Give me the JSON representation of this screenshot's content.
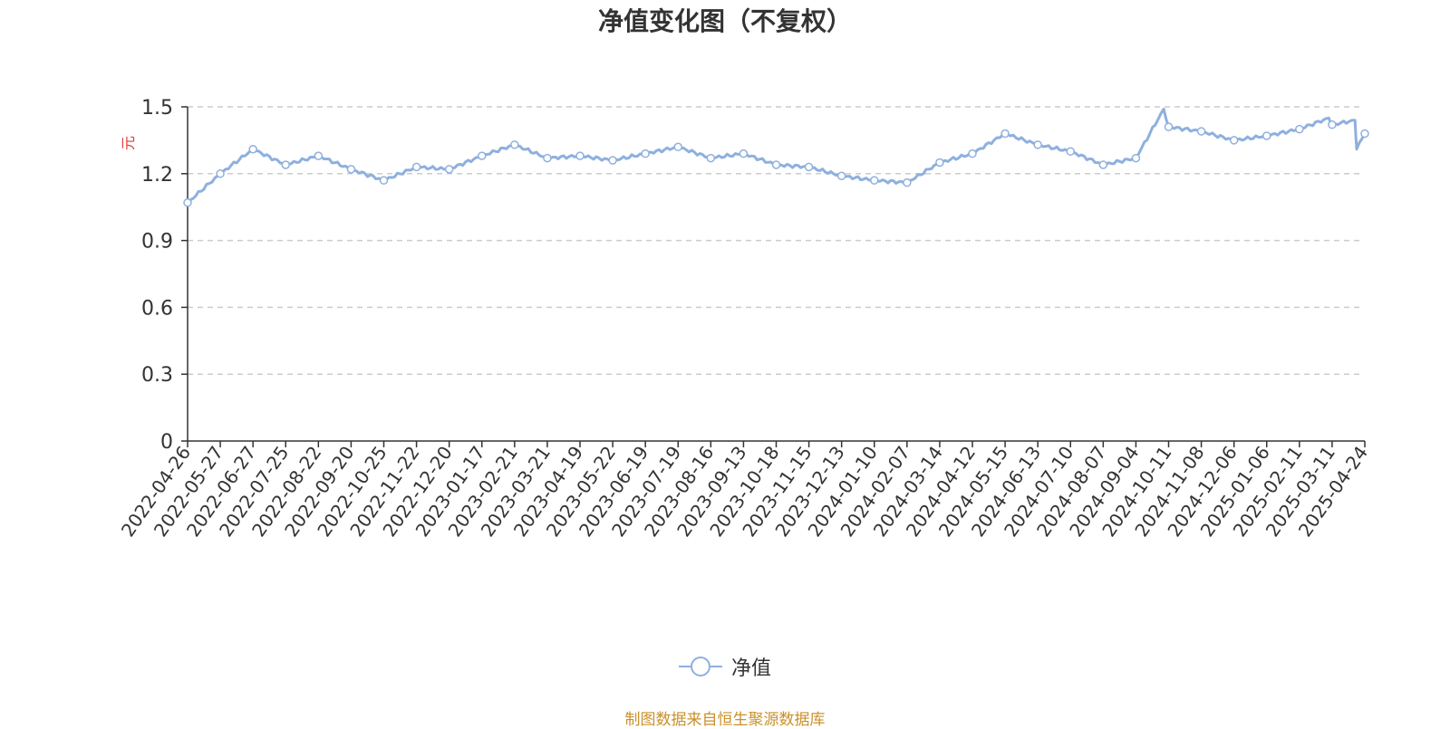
{
  "chart_data": {
    "type": "line",
    "title": "净值变化图（不复权）",
    "ylabel": "元",
    "xlabel": "",
    "ylim": [
      0,
      1.5
    ],
    "yticks": [
      "0",
      "0.3",
      "0.6",
      "0.9",
      "1.2",
      "1.5"
    ],
    "grid": "horizontal dashed",
    "legend_position": "bottom-center",
    "x": [
      "2022-04-26",
      "2022-05-27",
      "2022-06-27",
      "2022-07-25",
      "2022-08-22",
      "2022-09-20",
      "2022-10-25",
      "2022-11-22",
      "2022-12-20",
      "2023-01-17",
      "2023-02-21",
      "2023-03-21",
      "2023-04-19",
      "2023-05-22",
      "2023-06-19",
      "2023-07-19",
      "2023-08-16",
      "2023-09-13",
      "2023-10-18",
      "2023-11-15",
      "2023-12-13",
      "2024-01-10",
      "2024-02-07",
      "2024-03-14",
      "2024-04-12",
      "2024-05-15",
      "2024-06-13",
      "2024-07-10",
      "2024-08-07",
      "2024-09-04",
      "2024-10-11",
      "2024-11-08",
      "2024-12-06",
      "2025-01-06",
      "2025-02-11",
      "2025-03-11",
      "2025-04-24"
    ],
    "series": [
      {
        "name": "净值",
        "color": "#8eb0de",
        "values": [
          1.07,
          1.2,
          1.31,
          1.24,
          1.28,
          1.22,
          1.17,
          1.23,
          1.22,
          1.28,
          1.33,
          1.27,
          1.28,
          1.26,
          1.29,
          1.32,
          1.27,
          1.29,
          1.24,
          1.23,
          1.19,
          1.17,
          1.16,
          1.25,
          1.29,
          1.38,
          1.33,
          1.3,
          1.24,
          1.27,
          1.41,
          1.39,
          1.35,
          1.37,
          1.4,
          1.42,
          1.38
        ]
      }
    ],
    "extra_points": [
      {
        "after_index": 29,
        "frac": 0.85,
        "value": 1.49
      },
      {
        "after_index": 34,
        "frac": 0.9,
        "value": 1.45
      },
      {
        "after_index": 35,
        "frac": 0.7,
        "value": 1.44
      },
      {
        "after_index": 35,
        "frac": 0.75,
        "value": 1.31
      }
    ]
  },
  "legend": {
    "label": "净值"
  },
  "source": {
    "text": "制图数据来自恒生聚源数据库",
    "color": "#c9912b"
  },
  "colors": {
    "axis": "#333333",
    "grid": "#cccccc",
    "ylabel": "#e53935"
  }
}
